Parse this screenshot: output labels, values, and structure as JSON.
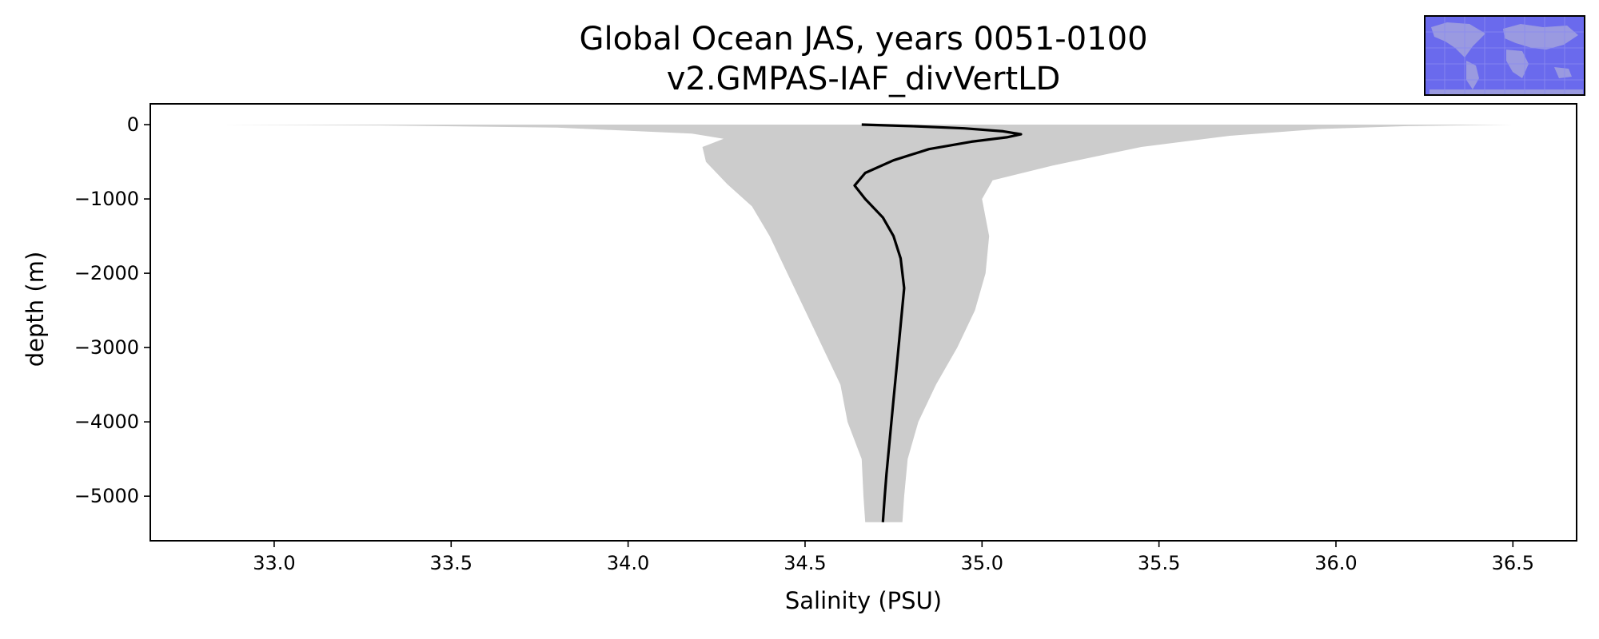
{
  "chart_data": {
    "type": "line",
    "title": "Global Ocean JAS, years 0051-0100",
    "subtitle": "v2.GMPAS-IAF_divVertLD",
    "xlabel": "Salinity (PSU)",
    "ylabel": "depth (m)",
    "xlim": [
      32.65,
      36.68
    ],
    "ylim": [
      -5600,
      280
    ],
    "xticks": [
      33.0,
      33.5,
      34.0,
      34.5,
      35.0,
      35.5,
      36.0,
      36.5
    ],
    "xtick_labels": [
      "33.0",
      "33.5",
      "34.0",
      "34.5",
      "35.0",
      "35.5",
      "36.0",
      "36.5"
    ],
    "yticks": [
      0,
      -1000,
      -2000,
      -3000,
      -4000,
      -5000
    ],
    "ytick_labels": [
      "0",
      "−1000",
      "−2000",
      "−3000",
      "−4000",
      "−5000"
    ],
    "grid": false,
    "legend": "none",
    "series": [
      {
        "kind": "mean_profile",
        "color": "#000000",
        "points": [
          [
            34.66,
            0
          ],
          [
            34.8,
            -20
          ],
          [
            34.95,
            -50
          ],
          [
            35.06,
            -90
          ],
          [
            35.11,
            -130
          ],
          [
            35.07,
            -170
          ],
          [
            34.97,
            -230
          ],
          [
            34.85,
            -330
          ],
          [
            34.75,
            -480
          ],
          [
            34.67,
            -650
          ],
          [
            34.64,
            -820
          ],
          [
            34.67,
            -1000
          ],
          [
            34.72,
            -1250
          ],
          [
            34.75,
            -1500
          ],
          [
            34.77,
            -1800
          ],
          [
            34.78,
            -2200
          ],
          [
            34.77,
            -2700
          ],
          [
            34.76,
            -3200
          ],
          [
            34.75,
            -3700
          ],
          [
            34.74,
            -4200
          ],
          [
            34.73,
            -4700
          ],
          [
            34.725,
            -5000
          ],
          [
            34.72,
            -5350
          ]
        ]
      },
      {
        "kind": "min_max_envelope",
        "color": "#cccccc",
        "min_points": [
          [
            32.85,
            0
          ],
          [
            33.3,
            -10
          ],
          [
            33.8,
            -40
          ],
          [
            34.18,
            -120
          ],
          [
            34.27,
            -190
          ],
          [
            34.21,
            -300
          ],
          [
            34.22,
            -500
          ],
          [
            34.28,
            -800
          ],
          [
            34.35,
            -1100
          ],
          [
            34.4,
            -1500
          ],
          [
            34.45,
            -2000
          ],
          [
            34.5,
            -2500
          ],
          [
            34.55,
            -3000
          ],
          [
            34.6,
            -3500
          ],
          [
            34.62,
            -4000
          ],
          [
            34.66,
            -4500
          ],
          [
            34.665,
            -5000
          ],
          [
            34.67,
            -5350
          ]
        ],
        "max_points": [
          [
            36.5,
            0
          ],
          [
            36.2,
            -20
          ],
          [
            35.95,
            -60
          ],
          [
            35.7,
            -150
          ],
          [
            35.45,
            -300
          ],
          [
            35.2,
            -550
          ],
          [
            35.03,
            -750
          ],
          [
            35.0,
            -1000
          ],
          [
            35.02,
            -1500
          ],
          [
            35.01,
            -2000
          ],
          [
            34.98,
            -2500
          ],
          [
            34.93,
            -3000
          ],
          [
            34.87,
            -3500
          ],
          [
            34.82,
            -4000
          ],
          [
            34.79,
            -4500
          ],
          [
            34.78,
            -5000
          ],
          [
            34.775,
            -5350
          ]
        ]
      }
    ]
  },
  "inset": {
    "name": "world-map-region-inset",
    "ocean_color": "#6a6aed",
    "land_color": "#9a9ae0",
    "border_color": "#000000"
  }
}
